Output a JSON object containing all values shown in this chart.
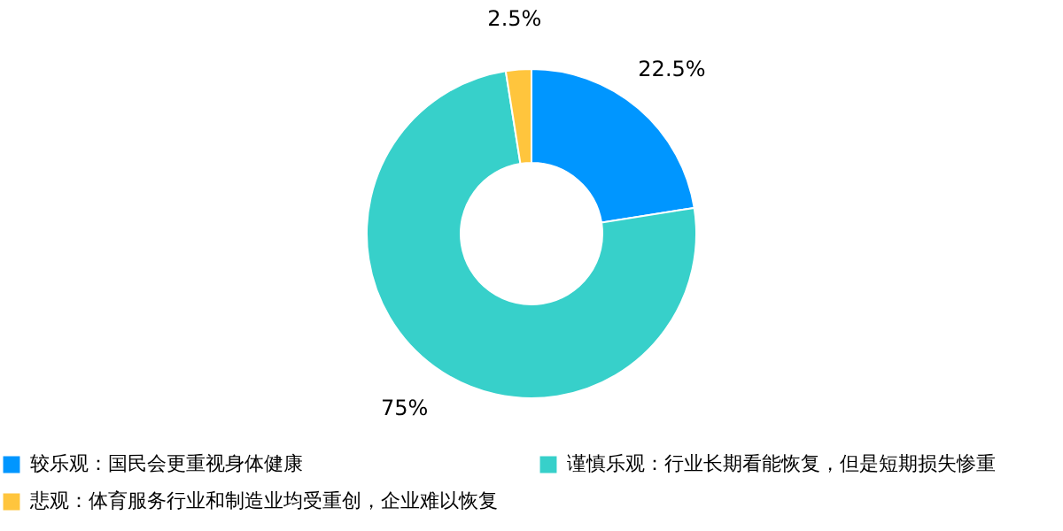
{
  "chart_data": {
    "type": "donut",
    "categories": [
      "较乐观：国民会更重视身体健康",
      "谨慎乐观：行业长期看能恢复，但是短期损失惨重",
      "悲观：体育服务行业和制造业均受重创，企业难以恢复"
    ],
    "values": [
      22.5,
      75,
      2.5
    ],
    "colors": [
      "#0096ff",
      "#37d0ca",
      "#ffc53d"
    ],
    "value_labels": [
      "22.5%",
      "75%",
      "2.5%"
    ],
    "legend": "bottom"
  }
}
